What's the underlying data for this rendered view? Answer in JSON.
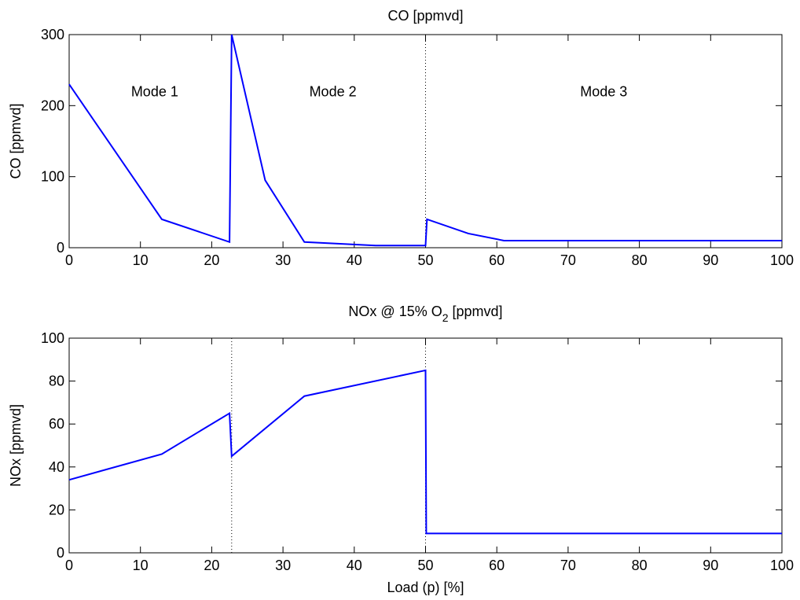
{
  "chart_data": [
    {
      "type": "line",
      "title": "CO [ppmvd]",
      "xlabel": "",
      "ylabel": "CO [ppmvd]",
      "xlim": [
        0,
        100
      ],
      "ylim": [
        0,
        300
      ],
      "xticks": [
        0,
        10,
        20,
        30,
        40,
        50,
        60,
        70,
        80,
        90,
        100
      ],
      "yticks": [
        0,
        100,
        200,
        300
      ],
      "grid": false,
      "series": [
        {
          "color": "#0000ff",
          "x": [
            0,
            13,
            22.5,
            22.8,
            27.5,
            33,
            43,
            50,
            50.2,
            56,
            61,
            100
          ],
          "y": [
            230,
            40,
            8,
            300,
            95,
            8,
            3,
            3,
            40,
            20,
            10,
            10
          ]
        }
      ],
      "reference_lines": [
        {
          "x": 50,
          "style": "dotted"
        }
      ],
      "annotations": [
        {
          "text": "Mode 1",
          "x": 12,
          "y": 220
        },
        {
          "text": "Mode 2",
          "x": 37,
          "y": 220
        },
        {
          "text": "Mode 3",
          "x": 75,
          "y": 220
        }
      ]
    },
    {
      "type": "line",
      "title_main": "NOx @ 15% O",
      "title_sub": "2",
      "title_rest": " [ppmvd]",
      "xlabel": "Load (p) [%]",
      "ylabel": "NOx [ppmvd]",
      "xlim": [
        0,
        100
      ],
      "ylim": [
        0,
        100
      ],
      "xticks": [
        0,
        10,
        20,
        30,
        40,
        50,
        60,
        70,
        80,
        90,
        100
      ],
      "yticks": [
        0,
        20,
        40,
        60,
        80,
        100
      ],
      "grid": false,
      "series": [
        {
          "color": "#0000ff",
          "x": [
            0,
            13,
            22.5,
            22.8,
            33,
            50,
            50.1,
            100
          ],
          "y": [
            34,
            46,
            65,
            45,
            73,
            85,
            9,
            9
          ]
        }
      ],
      "reference_lines": [
        {
          "x": 22.8,
          "style": "dotted"
        },
        {
          "x": 50,
          "style": "dotted"
        }
      ]
    }
  ]
}
